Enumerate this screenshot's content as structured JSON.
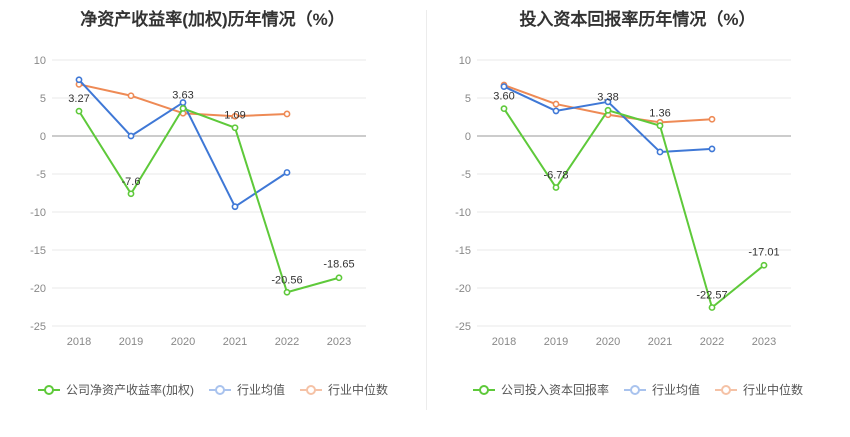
{
  "chart_data": [
    {
      "type": "line",
      "title": "净资产收益率(加权)历年情况（%）",
      "categories": [
        "2018",
        "2019",
        "2020",
        "2021",
        "2022",
        "2023"
      ],
      "yticks": [
        "10",
        "5",
        "0",
        "-5",
        "-10",
        "-15",
        "-20",
        "-25"
      ],
      "ylim": [
        -25,
        10
      ],
      "grid": true,
      "legend_position": "bottom",
      "series": [
        {
          "name": "公司净资产收益率(加权)",
          "color": "#5ec93a",
          "values": [
            3.27,
            -7.6,
            3.63,
            1.09,
            -20.56,
            -18.65
          ],
          "labels": [
            "3.27",
            "-7.6",
            "3.63",
            "1.09",
            "-20.56",
            "-18.65"
          ]
        },
        {
          "name": "行业均值",
          "color": "#3f78d6",
          "values": [
            7.4,
            0.0,
            4.4,
            -9.3,
            -4.8,
            null
          ]
        },
        {
          "name": "行业中位数",
          "color": "#ee8a55",
          "values": [
            6.8,
            5.3,
            3.0,
            2.6,
            2.9,
            null
          ]
        }
      ]
    },
    {
      "type": "line",
      "title": "投入资本回报率历年情况（%）",
      "categories": [
        "2018",
        "2019",
        "2020",
        "2021",
        "2022",
        "2023"
      ],
      "yticks": [
        "10",
        "5",
        "0",
        "-5",
        "-10",
        "-15",
        "-20",
        "-25"
      ],
      "ylim": [
        -25,
        10
      ],
      "grid": true,
      "legend_position": "bottom",
      "series": [
        {
          "name": "公司投入资本回报率",
          "color": "#5ec93a",
          "values": [
            3.6,
            -6.78,
            3.38,
            1.36,
            -22.57,
            -17.01
          ],
          "labels": [
            "3.60",
            "-6.78",
            "3.38",
            "1.36",
            "-22.57",
            "-17.01"
          ]
        },
        {
          "name": "行业均值",
          "color": "#3f78d6",
          "values": [
            6.5,
            3.3,
            4.5,
            -2.1,
            -1.7,
            null
          ]
        },
        {
          "name": "行业中位数",
          "color": "#ee8a55",
          "values": [
            6.7,
            4.2,
            2.8,
            1.8,
            2.2,
            null
          ]
        }
      ]
    }
  ]
}
